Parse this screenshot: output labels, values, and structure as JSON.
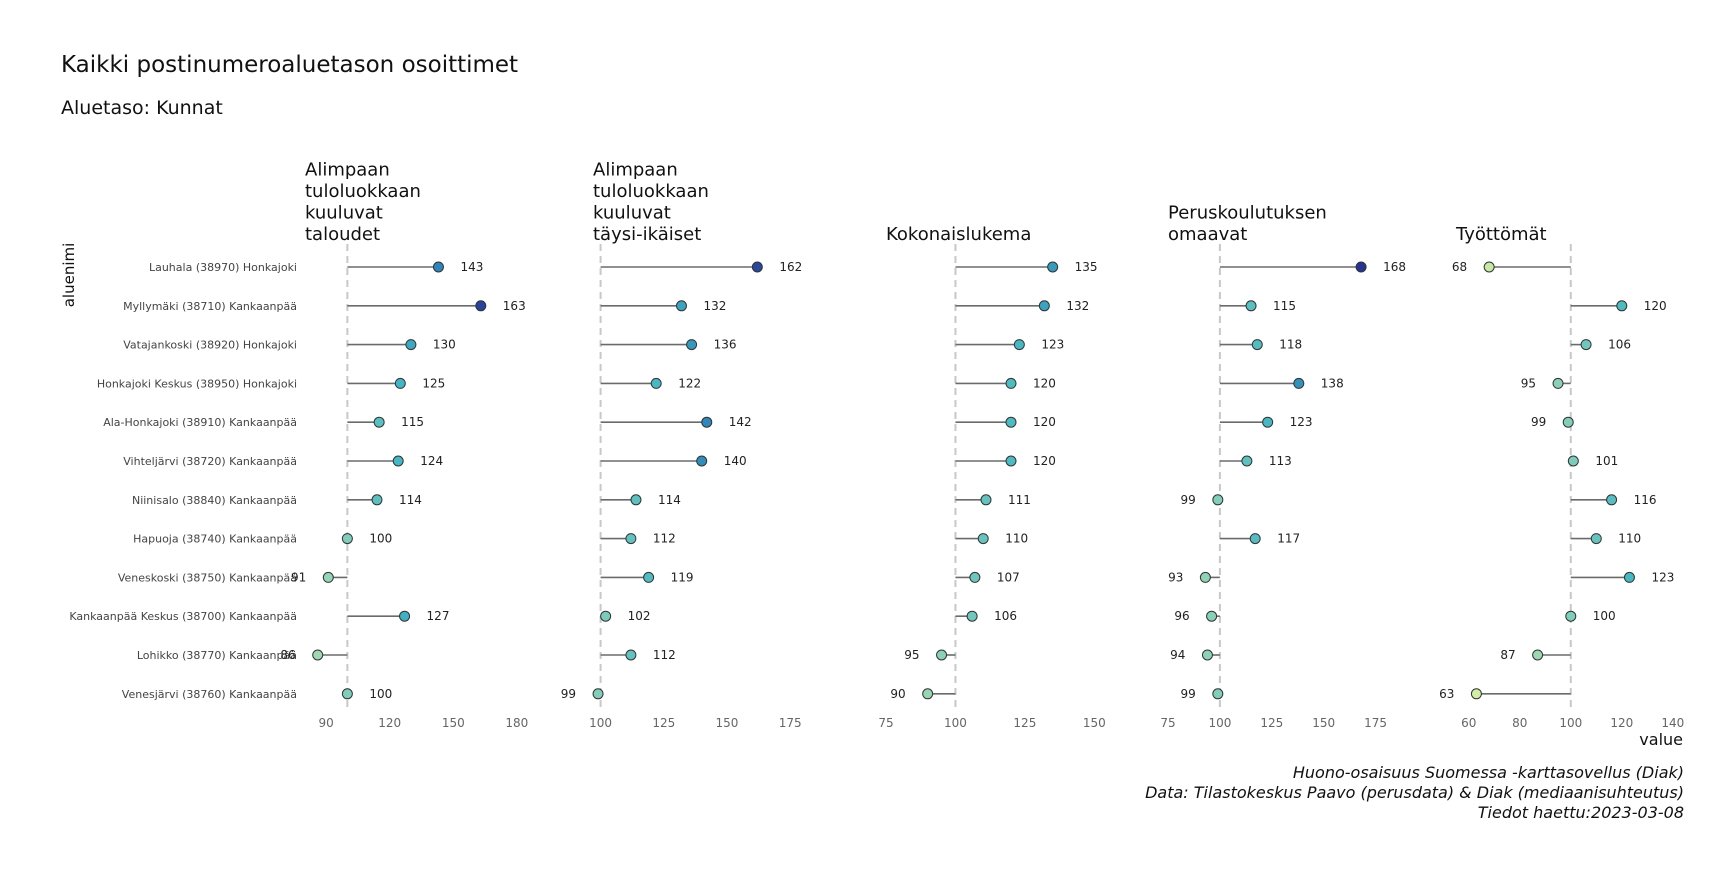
{
  "chart_data": {
    "type": "lollipop",
    "title": "Kaikki postinumeroaluetason osoittimet",
    "subtitle": "Aluetaso: Kunnat",
    "ylabel": "aluenimi",
    "xlabel": "value",
    "reference_value": 100,
    "grid": false,
    "legend": "none",
    "categories": [
      "Lauhala (38970) Honkajoki",
      "Myllymäki (38710) Kankaanpää",
      "Vatajankoski (38920) Honkajoki",
      "Honkajoki Keskus (38950) Honkajoki",
      "Ala-Honkajoki (38910) Kankaanpää",
      "Vihteljärvi (38720) Kankaanpää",
      "Niinisalo (38840) Kankaanpää",
      "Hapuoja (38740) Kankaanpää",
      "Veneskoski (38750) Kankaanpää",
      "Kankaanpää Keskus (38700) Kankaanpää",
      "Lohikko (38770) Kankaanpää",
      "Venesjärvi (38760) Kankaanpää"
    ],
    "panels": [
      {
        "name": "Alimpaan tuloluokkaan kuuluvat taloudet",
        "title_lines": [
          "Alimpaan",
          "tuloluokkaan",
          "kuuluvat",
          "taloudet"
        ],
        "xlim": [
          80,
          190
        ],
        "ticks": [
          90,
          120,
          150,
          180
        ],
        "values": [
          143,
          163,
          130,
          125,
          115,
          124,
          114,
          100,
          91,
          127,
          86,
          100
        ]
      },
      {
        "name": "Alimpaan tuloluokkaan kuuluvat täysi-ikäiset",
        "title_lines": [
          "Alimpaan",
          "tuloluokkaan",
          "kuuluvat",
          "täysi-ikäiset"
        ],
        "xlim": [
          97,
          186
        ],
        "ticks": [
          100,
          125,
          150,
          175
        ],
        "values": [
          162,
          132,
          136,
          122,
          142,
          140,
          114,
          112,
          119,
          102,
          112,
          99
        ]
      },
      {
        "name": "Kokonaislukema",
        "title_lines": [
          "Kokonaislukema"
        ],
        "xlim": [
          75,
          156
        ],
        "ticks": [
          75,
          100,
          125,
          150
        ],
        "values": [
          135,
          132,
          123,
          120,
          120,
          120,
          111,
          110,
          107,
          106,
          95,
          90
        ]
      },
      {
        "name": "Peruskoulutuksen omaavat",
        "title_lines": [
          "Peruskoulutuksen",
          "omaavat"
        ],
        "xlim": [
          75,
          180
        ],
        "ticks": [
          75,
          100,
          125,
          150,
          175
        ],
        "values": [
          168,
          115,
          118,
          138,
          123,
          113,
          99,
          117,
          93,
          96,
          94,
          99
        ]
      },
      {
        "name": "Työttömät",
        "title_lines": [
          "Työttömät"
        ],
        "xlim": [
          55,
          144
        ],
        "ticks": [
          60,
          80,
          100,
          120,
          140
        ],
        "values": [
          68,
          120,
          106,
          95,
          99,
          101,
          116,
          110,
          123,
          100,
          87,
          63
        ]
      }
    ],
    "caption": [
      "Huono-osaisuus Suomessa -karttasovellus (Diak)",
      "Data: Tilastokeskus Paavo (perusdata) & Diak (mediaanisuhteutus)",
      "Tiedot haettu:2023-03-08"
    ],
    "color_scale": {
      "low": "#d9f0a3",
      "mid_low": "#7fcdbb",
      "mid": "#41b6c4",
      "mid_high": "#2c7fb8",
      "high": "#253494"
    },
    "colors": {
      "segment": "#6b6b6b",
      "reference_line": "#c8c8c8",
      "point_stroke": "#333333",
      "text": "#222222",
      "tick_text": "#666666"
    }
  }
}
